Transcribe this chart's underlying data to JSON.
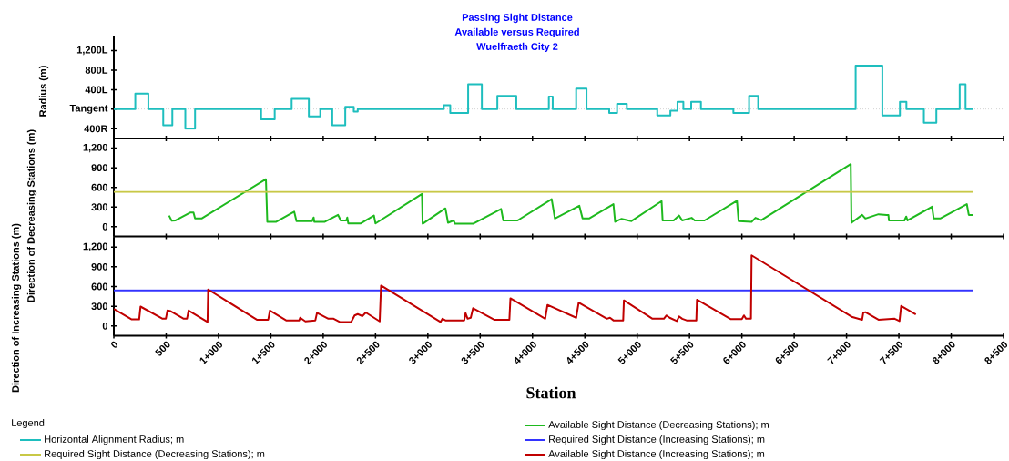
{
  "chart_data": [
    {
      "type": "step",
      "title": "Passing Sight Distance",
      "subtitle": "Available versus Required",
      "annotations": [
        "Wuelfraeth City 2"
      ],
      "ylabel": "Radius (m)",
      "legend_title": "Legend",
      "legend": "bottom",
      "tick_labels": "y",
      "x": [
        0,
        205,
        330,
        472,
        559,
        683,
        776,
        1407,
        1537,
        1699,
        1863,
        1972,
        2087,
        2211,
        2292,
        2330,
        3152,
        3214,
        3385,
        3516,
        3664,
        3845,
        4156,
        4193,
        4417,
        4516,
        4733,
        4808,
        4901,
        5192,
        5317,
        5385,
        5441,
        5516,
        5609,
        5919,
        6069,
        6156,
        7087,
        7342,
        7510,
        7572,
        7739,
        7858,
        8081,
        8137,
        8206
      ],
      "series": [
        {
          "name": "Horizontal Alignment Radius; m",
          "color": "#1ebebe",
          "values": [
            0,
            320,
            0,
            -330,
            0,
            -400,
            0,
            -210,
            0,
            210,
            -150,
            0,
            -330,
            50,
            -50,
            0,
            80,
            -80,
            510,
            0,
            270,
            0,
            260,
            0,
            420,
            0,
            -80,
            110,
            0,
            -130,
            -30,
            150,
            0,
            150,
            0,
            -80,
            270,
            0,
            890,
            -130,
            150,
            0,
            -280,
            0,
            510,
            0,
            0
          ]
        }
      ],
      "xlim": [
        0,
        8500
      ],
      "xticks": [
        0,
        500,
        1000,
        1500,
        2000,
        2500,
        3000,
        3500,
        4000,
        4500,
        5000,
        5500,
        6000,
        6500,
        7000,
        7500,
        8000,
        8500
      ],
      "ylim": [
        -600,
        1500
      ],
      "yticks": [
        {
          "value": 1200,
          "label": "1,200L"
        },
        {
          "value": 800,
          "label": "800L"
        },
        {
          "value": 400,
          "label": "400L"
        },
        {
          "value": 0,
          "label": "Tangent"
        },
        {
          "value": -400,
          "label": "400R"
        }
      ],
      "ref_lines": [
        {
          "axis": "y",
          "value": 0,
          "color": "#cccccc",
          "line_style": "dotted"
        }
      ]
    },
    {
      "type": "line",
      "ylabel": "Direction of Decreasing Stations (m)",
      "legend": "bottom",
      "tick_labels": "y",
      "series": [
        {
          "name": "Available Sight Distance (Decreasing Stations); m",
          "color": "#1eb91e",
          "x": [
            528,
            553,
            590,
            729,
            761,
            776,
            838,
            1453,
            1466,
            1552,
            1723,
            1745,
            1894,
            1909,
            1915,
            2016,
            2142,
            2168,
            2221,
            2230,
            2240,
            2360,
            2485,
            2500,
            2944,
            2950,
            3168,
            3193,
            3246,
            3260,
            3432,
            3700,
            3721,
            3857,
            4183,
            4214,
            4447,
            4478,
            4540,
            4773,
            4789,
            4851,
            4945,
            5233,
            5243,
            5348,
            5400,
            5430,
            5520,
            5550,
            5643,
            5953,
            5969,
            6093,
            6130,
            6186,
            7040,
            7047,
            7149,
            7180,
            7305,
            7383,
            7400,
            7405,
            7553,
            7570,
            7583,
            7817,
            7833,
            7895,
            8149,
            8168,
            8206
          ],
          "values": [
            170,
            90,
            95,
            215,
            215,
            125,
            125,
            725,
            75,
            75,
            230,
            85,
            85,
            140,
            75,
            75,
            180,
            95,
            95,
            140,
            50,
            50,
            170,
            50,
            500,
            45,
            280,
            60,
            95,
            45,
            45,
            270,
            95,
            95,
            420,
            125,
            320,
            125,
            125,
            345,
            75,
            120,
            85,
            390,
            95,
            95,
            170,
            95,
            135,
            95,
            95,
            395,
            85,
            75,
            135,
            100,
            955,
            60,
            180,
            125,
            190,
            180,
            180,
            95,
            95,
            155,
            95,
            305,
            125,
            125,
            345,
            180,
            180
          ]
        },
        {
          "name": "Required Sight Distance (Decreasing Stations); m",
          "color": "#c8c846",
          "x": [
            0,
            8206
          ],
          "values": [
            530,
            530
          ]
        }
      ],
      "xlim": [
        0,
        8500
      ],
      "xticks": [
        0,
        500,
        1000,
        1500,
        2000,
        2500,
        3000,
        3500,
        4000,
        4500,
        5000,
        5500,
        6000,
        6500,
        7000,
        7500,
        8000,
        8500
      ],
      "ylim": [
        -150,
        1350
      ],
      "yticks": [
        0,
        300,
        600,
        900,
        {
          "value": 1200,
          "label": "1,200"
        }
      ]
    },
    {
      "type": "line",
      "xlabel": "Station",
      "ylabel": "Direction of Increasing Stations (m)",
      "legend": "bottom",
      "series": [
        {
          "name": "Required Sight Distance (Increasing Stations); m",
          "color": "#3333ff",
          "x": [
            0,
            8206
          ],
          "values": [
            540,
            540
          ]
        },
        {
          "name": "Available Sight Distance (Increasing Stations); m",
          "color": "#c00000",
          "x": [
            0,
            171,
            242,
            255,
            466,
            497,
            512,
            543,
            668,
            699,
            714,
            895,
            901,
            1366,
            1475,
            1491,
            1646,
            1771,
            1780,
            1830,
            1925,
            1941,
            2049,
            2100,
            2158,
            2267,
            2300,
            2330,
            2376,
            2407,
            2540,
            2553,
            3121,
            3140,
            3168,
            3348,
            3360,
            3380,
            3410,
            3432,
            3634,
            3779,
            3789,
            4121,
            4143,
            4417,
            4441,
            4711,
            4740,
            4773,
            4866,
            4873,
            5146,
            5255,
            5280,
            5310,
            5379,
            5400,
            5430,
            5472,
            5565,
            5571,
            5891,
            6000,
            6020,
            6040,
            6087,
            6093,
            7056,
            7149,
            7160,
            7180,
            7305,
            7460,
            7506,
            7522,
            7662
          ],
          "values": [
            260,
            100,
            100,
            295,
            110,
            110,
            235,
            225,
            110,
            110,
            235,
            60,
            555,
            95,
            95,
            235,
            85,
            85,
            125,
            70,
            85,
            200,
            110,
            110,
            60,
            60,
            160,
            180,
            150,
            205,
            70,
            615,
            60,
            110,
            85,
            85,
            195,
            110,
            125,
            270,
            95,
            95,
            420,
            110,
            320,
            125,
            355,
            110,
            125,
            85,
            85,
            390,
            110,
            110,
            160,
            125,
            75,
            145,
            110,
            85,
            85,
            400,
            105,
            105,
            160,
            110,
            110,
            1075,
            135,
            95,
            200,
            210,
            95,
            110,
            75,
            305,
            175
          ]
        }
      ],
      "xlim": [
        0,
        8500
      ],
      "xticks": [
        0,
        500,
        {
          "value": 1000,
          "label": "1+000"
        },
        {
          "value": 1500,
          "label": "1+500"
        },
        {
          "value": 2000,
          "label": "2+000"
        },
        {
          "value": 2500,
          "label": "2+500"
        },
        {
          "value": 3000,
          "label": "3+000"
        },
        {
          "value": 3500,
          "label": "3+500"
        },
        {
          "value": 4000,
          "label": "4+000"
        },
        {
          "value": 4500,
          "label": "4+500"
        },
        {
          "value": 5000,
          "label": "5+000"
        },
        {
          "value": 5500,
          "label": "5+500"
        },
        {
          "value": 6000,
          "label": "6+000"
        },
        {
          "value": 6500,
          "label": "6+500"
        },
        {
          "value": 7000,
          "label": "7+000"
        },
        {
          "value": 7500,
          "label": "7+500"
        },
        {
          "value": 8000,
          "label": "8+000"
        },
        {
          "value": 8500,
          "label": "8+500"
        }
      ],
      "ylim": [
        -150,
        1350
      ],
      "yticks": [
        0,
        300,
        600,
        900,
        {
          "value": 1200,
          "label": "1,200"
        }
      ]
    }
  ]
}
